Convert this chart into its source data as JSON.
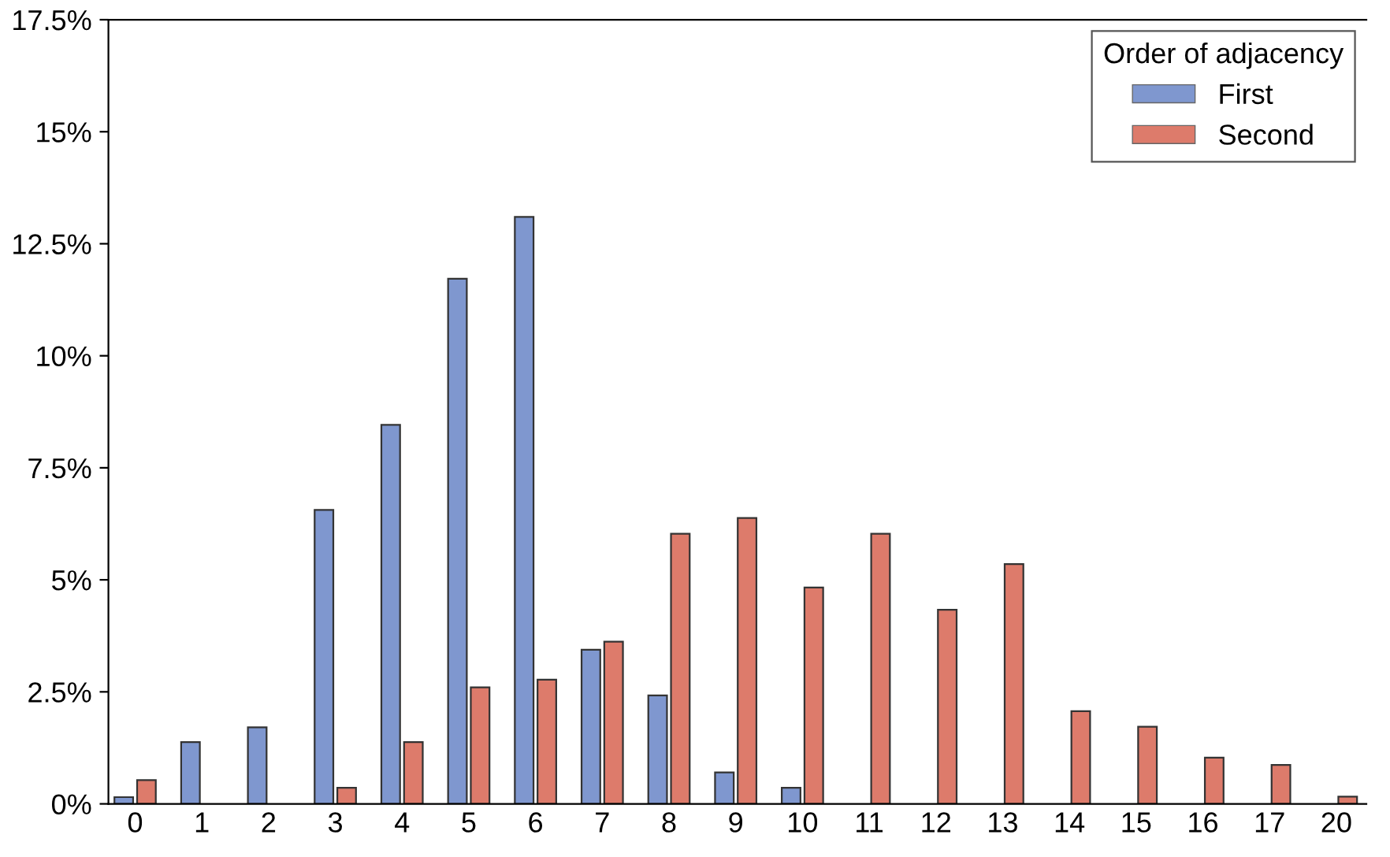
{
  "chart_data": {
    "type": "bar",
    "legend_title": "Order of adjacency",
    "legend": "top right",
    "grid": false,
    "categories": [
      "0",
      "1",
      "2",
      "3",
      "4",
      "5",
      "6",
      "7",
      "8",
      "9",
      "10",
      "11",
      "12",
      "13",
      "14",
      "15",
      "16",
      "17",
      "20"
    ],
    "series": [
      {
        "name": "First",
        "color": "#7f97cf",
        "values": [
          0.15,
          1.38,
          1.71,
          6.56,
          8.46,
          11.72,
          13.1,
          3.44,
          2.42,
          0.7,
          0.36,
          null,
          null,
          null,
          null,
          null,
          null,
          null,
          null
        ]
      },
      {
        "name": "Second",
        "color": "#dd7b6b",
        "values": [
          0.53,
          null,
          null,
          0.36,
          1.38,
          2.6,
          2.77,
          3.62,
          6.03,
          6.38,
          4.83,
          6.03,
          4.33,
          5.35,
          2.07,
          1.72,
          1.03,
          0.87,
          0.16
        ]
      }
    ],
    "ylim": [
      0,
      17.5
    ],
    "yticks": [
      {
        "value": 0,
        "label": "0%"
      },
      {
        "value": 2.5,
        "label": "2.5%"
      },
      {
        "value": 5,
        "label": "5%"
      },
      {
        "value": 7.5,
        "label": "7.5%"
      },
      {
        "value": 10,
        "label": "10%"
      },
      {
        "value": 12.5,
        "label": "12.5%"
      },
      {
        "value": 15,
        "label": "15%"
      },
      {
        "value": 17.5,
        "label": "17.5%"
      }
    ]
  }
}
